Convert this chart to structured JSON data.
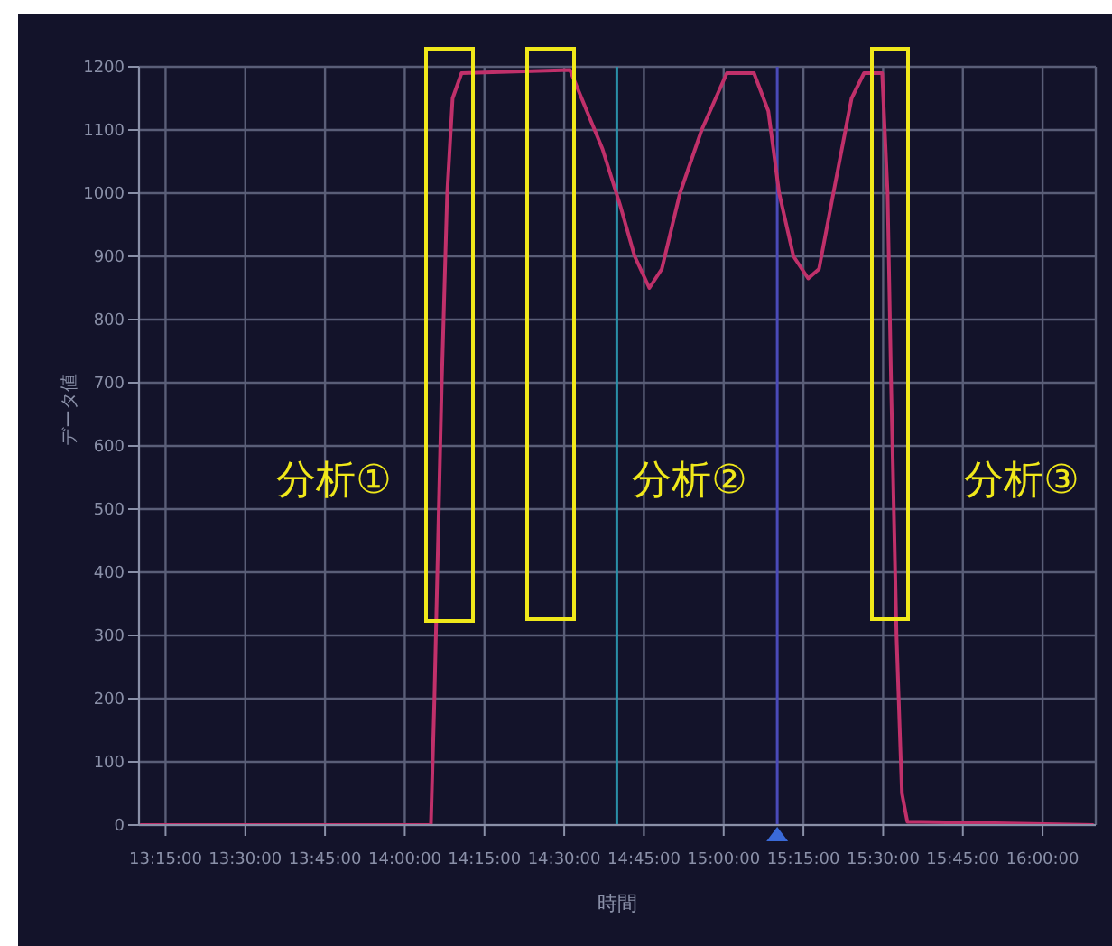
{
  "chart_data": {
    "type": "line",
    "xlabel": "時間",
    "ylabel": "データ値",
    "annotations": [
      "分析①",
      "分析②",
      "分析③"
    ],
    "x": [
      13.17,
      14.082,
      14.093,
      14.116,
      14.133,
      14.15,
      14.178,
      14.518,
      14.62,
      14.676,
      14.721,
      14.767,
      14.806,
      14.863,
      14.931,
      15.01,
      15.095,
      15.14,
      15.174,
      15.219,
      15.265,
      15.299,
      15.344,
      15.401,
      15.44,
      15.497,
      15.514,
      15.525,
      15.542,
      15.559,
      15.576,
      15.621,
      16.16
    ],
    "series": [
      {
        "color": "#c0306a",
        "values": [
          0,
          0,
          200,
          700,
          1000,
          1150,
          1190,
          1195,
          1070,
          980,
          900,
          850,
          880,
          1000,
          1100,
          1190,
          1190,
          1130,
          1000,
          900,
          865,
          880,
          1000,
          1150,
          1190,
          1190,
          1000,
          700,
          300,
          50,
          5,
          5,
          0
        ]
      }
    ],
    "xlim": [
      13.1667,
      16.1667
    ],
    "xticks": [
      {
        "value": 13.25,
        "label": "13:15:00"
      },
      {
        "value": 13.5,
        "label": "13:30:00"
      },
      {
        "value": 13.75,
        "label": "13:45:00"
      },
      {
        "value": 14,
        "label": "14:00:00"
      },
      {
        "value": 14.25,
        "label": "14:15:00"
      },
      {
        "value": 14.5,
        "label": "14:30:00"
      },
      {
        "value": 14.75,
        "label": "14:45:00"
      },
      {
        "value": 15,
        "label": "15:00:00"
      },
      {
        "value": 15.25,
        "label": "15:15:00"
      },
      {
        "value": 15.5,
        "label": "15:30:00"
      },
      {
        "value": 15.75,
        "label": "15:45:00"
      },
      {
        "value": 16,
        "label": "16:00:00"
      }
    ],
    "ylim": [
      0,
      1200
    ],
    "yticks": [
      0,
      100,
      200,
      300,
      400,
      500,
      600,
      700,
      800,
      900,
      1000,
      1100,
      1200
    ],
    "ref_lines": [
      {
        "axis": "x",
        "value": 14.665,
        "color": "#2a8fa8"
      },
      {
        "axis": "x",
        "value": 15.168,
        "color": "#4a4ab8"
      }
    ],
    "grid": true,
    "marker": "none",
    "line_style": "solid"
  }
}
